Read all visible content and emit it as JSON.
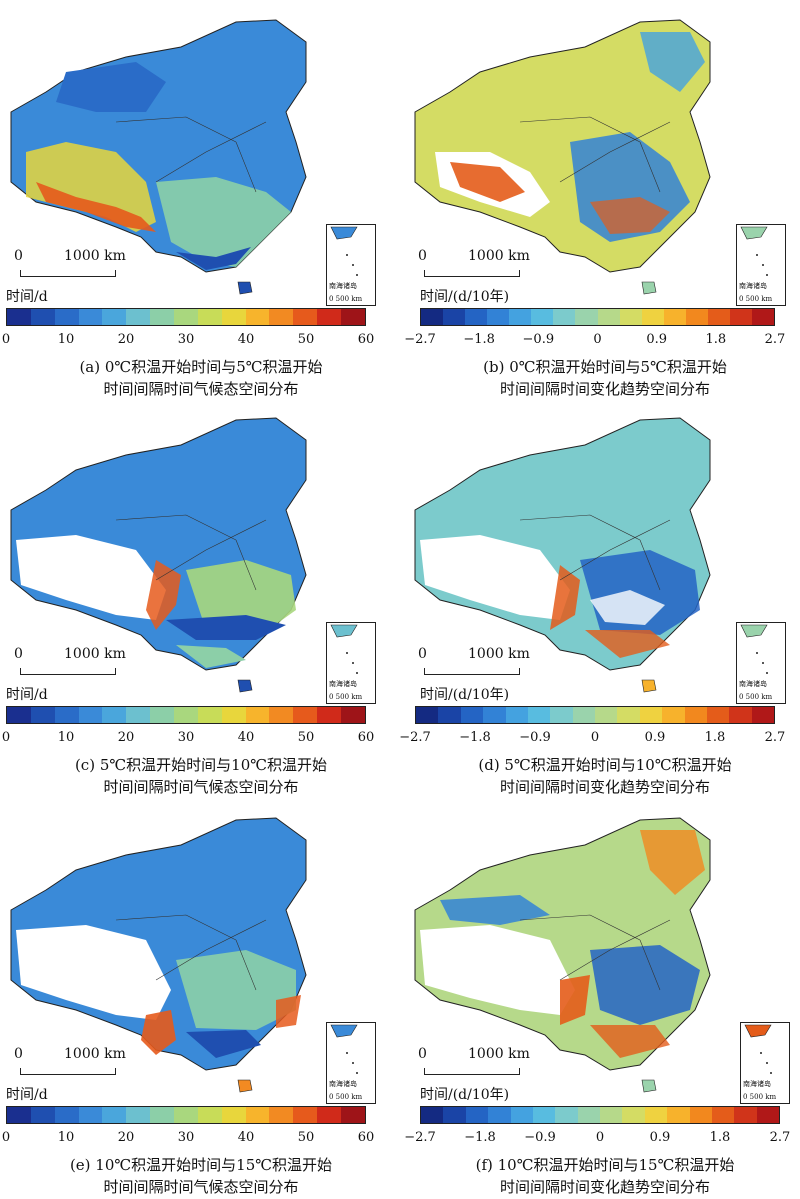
{
  "panels": [
    {
      "id": "a",
      "unit": "时间/d",
      "scale_zero": "0",
      "scale_km": "1000 km",
      "inset_label": "南海诸岛",
      "inset_scale": "0  500 km",
      "ticks": [
        "0",
        "10",
        "20",
        "30",
        "40",
        "50",
        "60"
      ],
      "caption_line1": "(a) 0℃积温开始时间与5℃积温开始",
      "caption_line2": "时间间隔时间气候态空间分布"
    },
    {
      "id": "b",
      "unit": "时间/(d/10年)",
      "scale_zero": "0",
      "scale_km": "1000 km",
      "inset_label": "南海诸岛",
      "inset_scale": "0  500 km",
      "ticks": [
        "−2.7",
        "−1.8",
        "−0.9",
        "0",
        "0.9",
        "1.8",
        "2.7"
      ],
      "caption_line1": "(b) 0℃积温开始时间与5℃积温开始",
      "caption_line2": "时间间隔时间变化趋势空间分布"
    },
    {
      "id": "c",
      "unit": "时间/d",
      "scale_zero": "0",
      "scale_km": "1000 km",
      "inset_label": "南海诸岛",
      "inset_scale": "0  500 km",
      "ticks": [
        "0",
        "10",
        "20",
        "30",
        "40",
        "50",
        "60"
      ],
      "caption_line1": "(c) 5℃积温开始时间与10℃积温开始",
      "caption_line2": "时间间隔时间气候态空间分布"
    },
    {
      "id": "d",
      "unit": "时间/(d/10年)",
      "scale_zero": "0",
      "scale_km": "1000 km",
      "inset_label": "南海诸岛",
      "inset_scale": "0  500 km",
      "ticks": [
        "−2.7",
        "−1.8",
        "−0.9",
        "0",
        "0.9",
        "1.8",
        "2.7"
      ],
      "caption_line1": "(d) 5℃积温开始时间与10℃积温开始",
      "caption_line2": "时间间隔时间变化趋势空间分布"
    },
    {
      "id": "e",
      "unit": "时间/d",
      "scale_zero": "0",
      "scale_km": "1000 km",
      "inset_label": "南海诸岛",
      "inset_scale": "0  500 km",
      "ticks": [
        "0",
        "10",
        "20",
        "30",
        "40",
        "50",
        "60"
      ],
      "caption_line1": "(e) 10℃积温开始时间与15℃积温开始",
      "caption_line2": "时间间隔时间气候态空间分布"
    },
    {
      "id": "f",
      "unit": "时间/(d/10年)",
      "scale_zero": "0",
      "scale_km": "1000 km",
      "inset_label": "南海诸岛",
      "inset_scale": "0  500 km",
      "ticks": [
        "−2.7",
        "−1.8",
        "−0.9",
        "0",
        "0.9",
        "1.8",
        "2.7"
      ],
      "caption_line1": "(f) 10℃积温开始时间与15℃积温开始",
      "caption_line2": "时间间隔时间变化趋势空间分布"
    }
  ],
  "palettes": {
    "climatology": [
      "#1a2f8f",
      "#1f4fb0",
      "#2a6cc8",
      "#3a8ad8",
      "#4aa6dc",
      "#6cc0cf",
      "#8ccfa8",
      "#a9d77e",
      "#c8dc58",
      "#e8d63c",
      "#f7b42c",
      "#f28a22",
      "#e65a1c",
      "#d02a1a",
      "#9e1418"
    ],
    "trend": [
      "#142a82",
      "#1a44a6",
      "#2464c4",
      "#3282d6",
      "#44a2e0",
      "#58bce0",
      "#7ccbcc",
      "#9ad3ac",
      "#b6d98a",
      "#d4dc64",
      "#efd240",
      "#f7b22c",
      "#f2881e",
      "#e45c1a",
      "#d0341a",
      "#b01818"
    ]
  }
}
